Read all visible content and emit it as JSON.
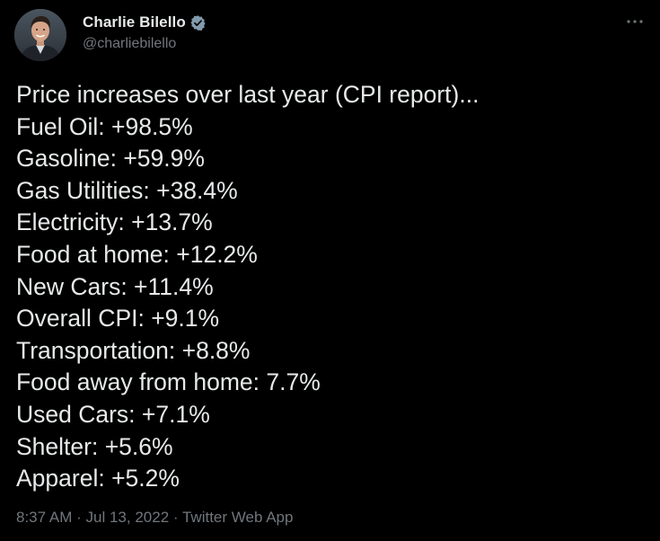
{
  "author": {
    "display_name": "Charlie Bilello",
    "handle": "@charliebilello",
    "verified": true,
    "avatar_icon": "person-avatar"
  },
  "tweet": {
    "lines": [
      "Price increases over last year (CPI report)...",
      "Fuel Oil: +98.5%",
      "Gasoline: +59.9%",
      "Gas Utilities: +38.4%",
      "Electricity: +13.7%",
      "Food at home: +12.2%",
      "New Cars: +11.4%",
      "Overall CPI: +9.1%",
      "Transportation: +8.8%",
      "Food away from home: 7.7%",
      "Used Cars: +7.1%",
      "Shelter: +5.6%",
      "Apparel: +5.2%"
    ]
  },
  "meta": {
    "time": "8:37 AM",
    "separator": "·",
    "date": "Jul 13, 2022",
    "source": "Twitter Web App"
  },
  "colors": {
    "background": "#000000",
    "text": "#e7e9ea",
    "secondary": "#71767b",
    "verified_badge": "#829aab"
  },
  "icons": {
    "more": "more-horizontal-icon",
    "verified": "verified-badge-icon"
  }
}
